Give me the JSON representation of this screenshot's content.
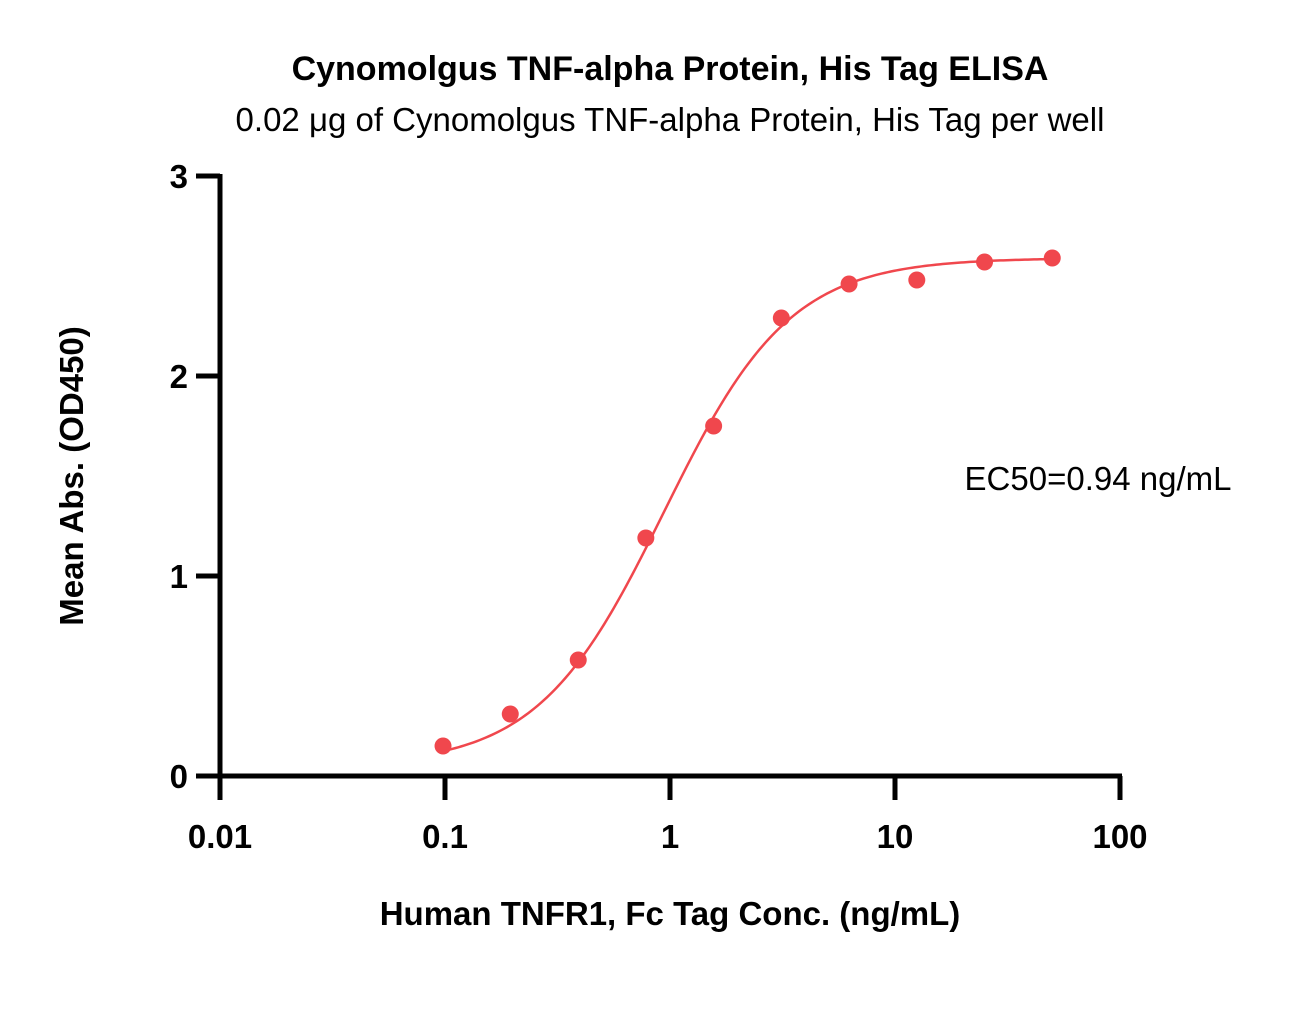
{
  "chart_data": {
    "type": "scatter",
    "title": "Cynomolgus TNF-alpha Protein, His Tag ELISA",
    "subtitle": "0.02 μg of Cynomolgus TNF-alpha Protein, His Tag per well",
    "xlabel": "Human TNFR1, Fc Tag Conc. (ng/mL)",
    "ylabel": "Mean Abs. (OD450)",
    "x_scale": "log",
    "xlim": [
      0.01,
      100
    ],
    "ylim": [
      0,
      3
    ],
    "x_ticks": [
      "0.01",
      "0.1",
      "1",
      "10",
      "100"
    ],
    "y_ticks": [
      "0",
      "1",
      "2",
      "3"
    ],
    "grid": false,
    "annotation": "EC50=0.94 ng/mL",
    "color": "#f0474d",
    "series": [
      {
        "x": [
          0.098,
          0.195,
          0.391,
          0.781,
          1.563,
          3.125,
          6.25,
          12.5,
          25,
          50
        ],
        "y": [
          0.15,
          0.31,
          0.58,
          1.19,
          1.75,
          2.29,
          2.46,
          2.48,
          2.57,
          2.59
        ]
      }
    ],
    "fit_curve": {
      "model": "4PL",
      "bottom": 0.05,
      "top": 2.59,
      "ec50": 0.94,
      "hill": 1.55
    }
  }
}
